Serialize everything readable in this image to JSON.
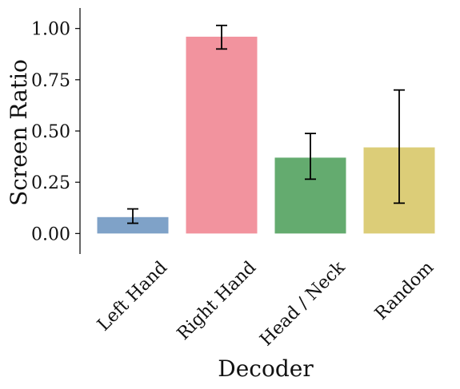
{
  "chart_data": {
    "type": "bar",
    "categories": [
      "Left Hand",
      "Right Hand",
      "Head / Neck",
      "Random"
    ],
    "values": [
      0.08,
      0.96,
      0.37,
      0.42
    ],
    "error_low": [
      0.05,
      0.9,
      0.265,
      0.148
    ],
    "error_high": [
      0.12,
      1.015,
      0.488,
      0.7
    ],
    "colors": [
      "#7fa2c8",
      "#f2939e",
      "#64ab6f",
      "#dccd78"
    ],
    "xlabel": "Decoder",
    "ylabel": "Screen Ratio",
    "ylim": [
      -0.1,
      1.1
    ],
    "yticks": [
      "0.00",
      "0.25",
      "0.50",
      "0.75",
      "1.00"
    ],
    "ytick_values": [
      0,
      0.25,
      0.5,
      0.75,
      1.0
    ],
    "grid": false,
    "legend": "none"
  }
}
